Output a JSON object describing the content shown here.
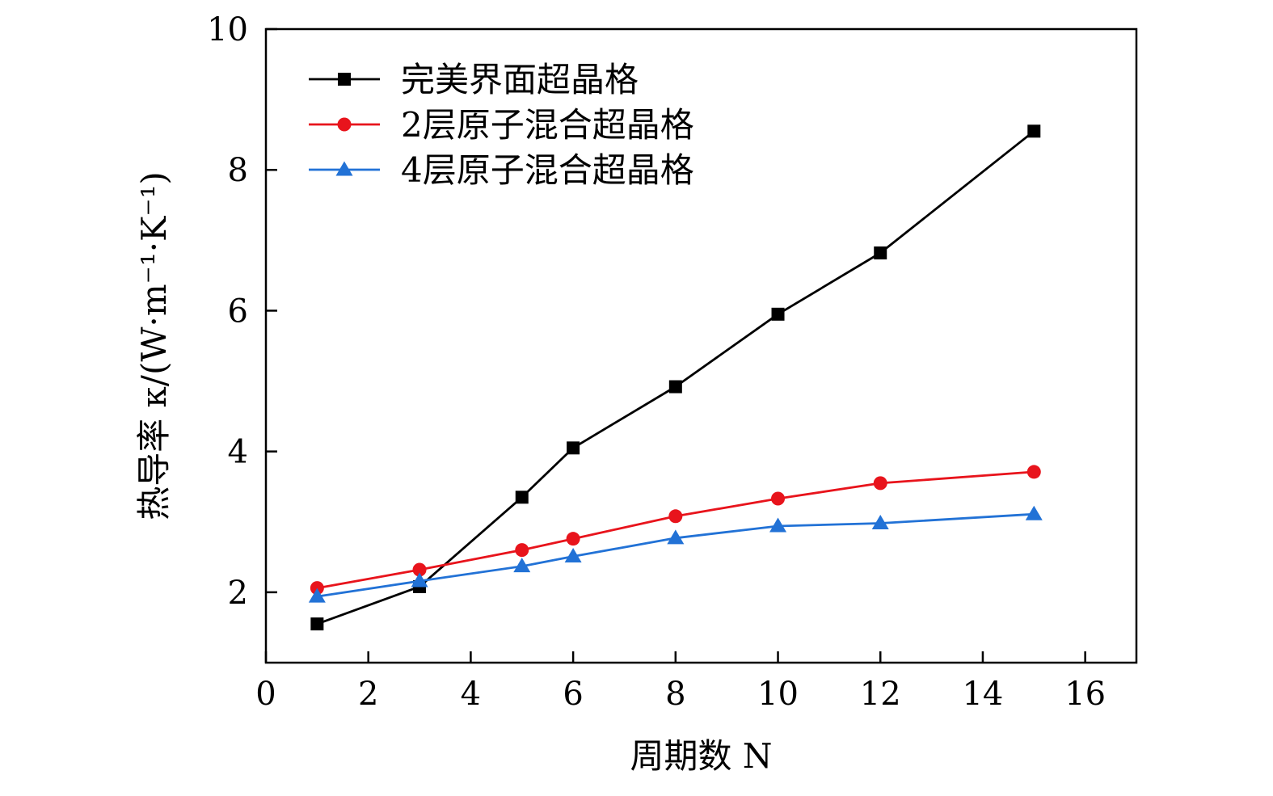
{
  "chart_data": {
    "type": "line",
    "title": "",
    "xlabel": "周期数 N",
    "ylabel": "热导率 κ/(W·m⁻¹·K⁻¹)",
    "xlim": [
      0,
      17
    ],
    "ylim": [
      1,
      10
    ],
    "x_ticks": [
      0,
      2,
      4,
      6,
      8,
      10,
      12,
      14,
      16
    ],
    "y_ticks": [
      2,
      4,
      6,
      8,
      10
    ],
    "x_tick_labels": [
      "0",
      "2",
      "4",
      "6",
      "8",
      "10",
      "12",
      "14",
      "16"
    ],
    "y_tick_labels": [
      "2",
      "4",
      "6",
      "8",
      "10"
    ],
    "grid": false,
    "legend_position": "top-left",
    "x": [
      1,
      3,
      5,
      6,
      8,
      10,
      12,
      15
    ],
    "series": [
      {
        "name": "完美界面超晶格",
        "color": "#000000",
        "marker": "square",
        "values": [
          1.55,
          2.08,
          3.35,
          4.05,
          4.92,
          5.95,
          6.82,
          8.55
        ]
      },
      {
        "name": "2层原子混合超晶格",
        "color": "#e8141c",
        "marker": "circle",
        "values": [
          2.06,
          2.32,
          2.6,
          2.76,
          3.08,
          3.33,
          3.55,
          3.71
        ]
      },
      {
        "name": "4层原子混合超晶格",
        "color": "#2272d6",
        "marker": "triangle",
        "values": [
          1.94,
          2.16,
          2.37,
          2.51,
          2.77,
          2.94,
          2.98,
          3.11
        ]
      }
    ]
  }
}
